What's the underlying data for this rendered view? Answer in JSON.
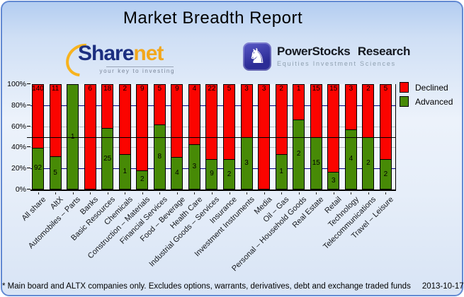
{
  "page": {
    "title": "Market Breadth Report",
    "footnote": "* Main board and ALTX companies only. Excludes options, warrants, derivatives, debt and exchange traded funds",
    "date": "2013-10-17"
  },
  "logos": {
    "sharenet": {
      "part1": "Share",
      "part2": "net",
      "tagline": "your key to investing",
      "swoosh_icon": "orange-arc-swoosh"
    },
    "powerstocks": {
      "title": "PowerStocks Research",
      "subtitle": "Equities Investment Sciences",
      "knight_icon": "chess-knight",
      "knight_glyph": "♞"
    }
  },
  "chart_data": {
    "type": "bar",
    "stacked": true,
    "unit": "percent of companies (100% stacked, counts shown as labels)",
    "title": "Market Breadth Report",
    "xlabel": "",
    "ylabel": "",
    "ylim": [
      0,
      100
    ],
    "yticks": [
      {
        "label": "0%",
        "value": 0
      },
      {
        "label": "20%",
        "value": 20
      },
      {
        "label": "40%",
        "value": 40
      },
      {
        "label": "60%",
        "value": 60
      },
      {
        "label": "80%",
        "value": 80
      },
      {
        "label": "100%",
        "value": 100
      }
    ],
    "gridlines": {
      "navy": [
        20,
        80
      ],
      "silver": [
        40,
        60
      ],
      "black_overlay": [
        50
      ]
    },
    "legend_position": "right",
    "categories": [
      "All share",
      "AltX",
      "Automobiles – Parts",
      "Banks",
      "Basic Resources",
      "Chemicals",
      "Construction – Materials",
      "Financial Services",
      "Food – Beverage",
      "Health Care",
      "Industrial Goods – Services",
      "Insurance",
      "Investment Instruments",
      "Media",
      "Oil – Gas",
      "Personal – Household Goods",
      "Real Estate",
      "Retail",
      "Technology",
      "Telecommunications",
      "Travel – Leisure"
    ],
    "series": [
      {
        "name": "Declined",
        "color": "#fb0400",
        "position": "top",
        "values": [
          140,
          11,
          0,
          6,
          18,
          2,
          9,
          5,
          9,
          4,
          22,
          5,
          3,
          3,
          2,
          1,
          15,
          15,
          3,
          2,
          5
        ]
      },
      {
        "name": "Advanced",
        "color": "#478a06",
        "position": "bottom",
        "values": [
          92,
          5,
          1,
          0,
          25,
          1,
          2,
          8,
          4,
          3,
          9,
          2,
          3,
          0,
          1,
          2,
          15,
          3,
          4,
          2,
          2
        ]
      }
    ]
  }
}
